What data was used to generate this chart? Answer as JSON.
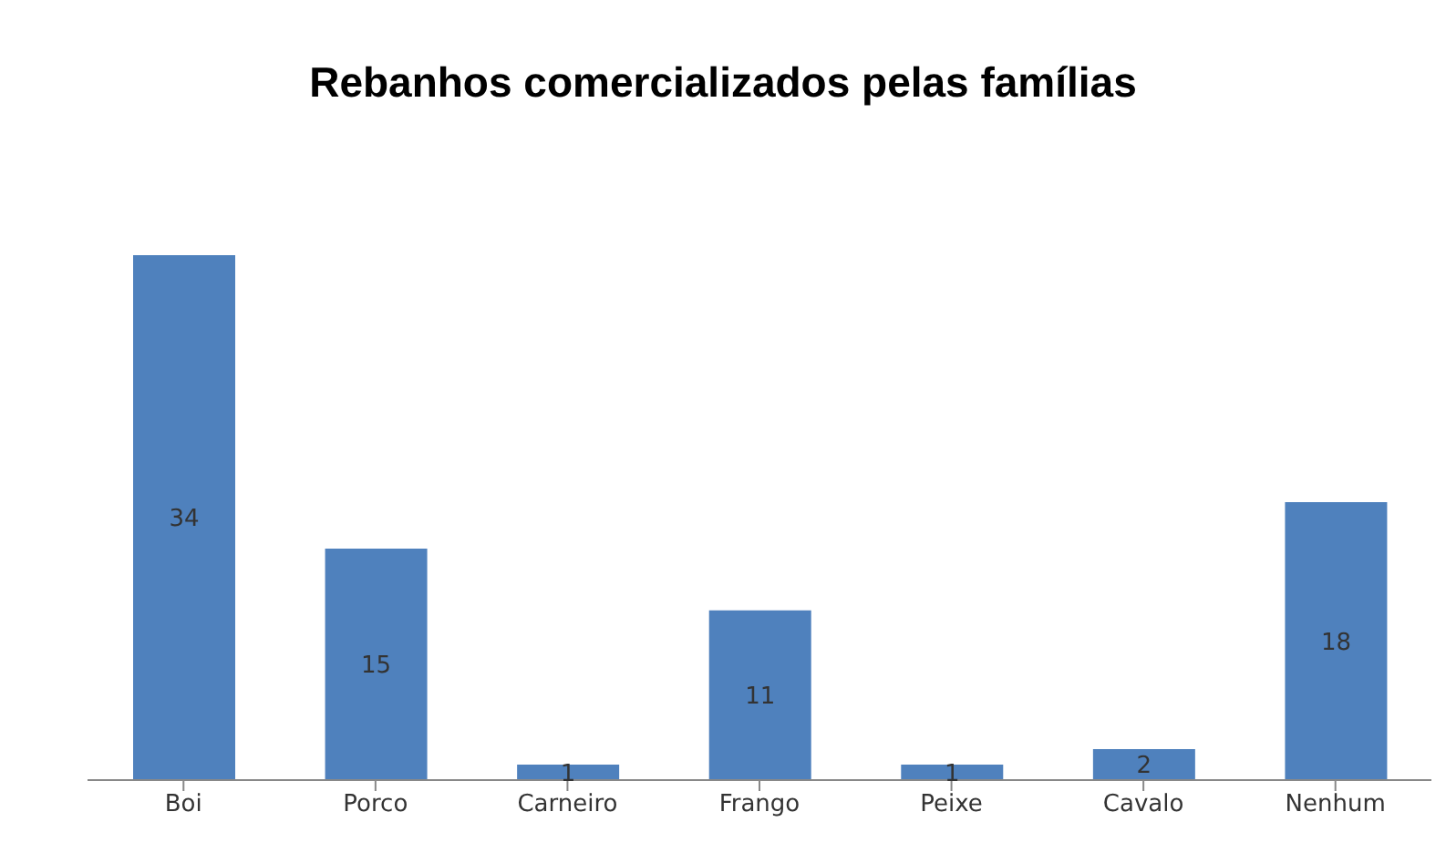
{
  "chart_data": {
    "type": "bar",
    "title": "Rebanhos comercializados pelas famílias",
    "categories": [
      "Boi",
      "Porco",
      "Carneiro",
      "Frango",
      "Peixe",
      "Cavalo",
      "Nenhum"
    ],
    "values": [
      34,
      15,
      1,
      11,
      1,
      2,
      18
    ],
    "color": "#4f81bd",
    "data_labels": true
  }
}
